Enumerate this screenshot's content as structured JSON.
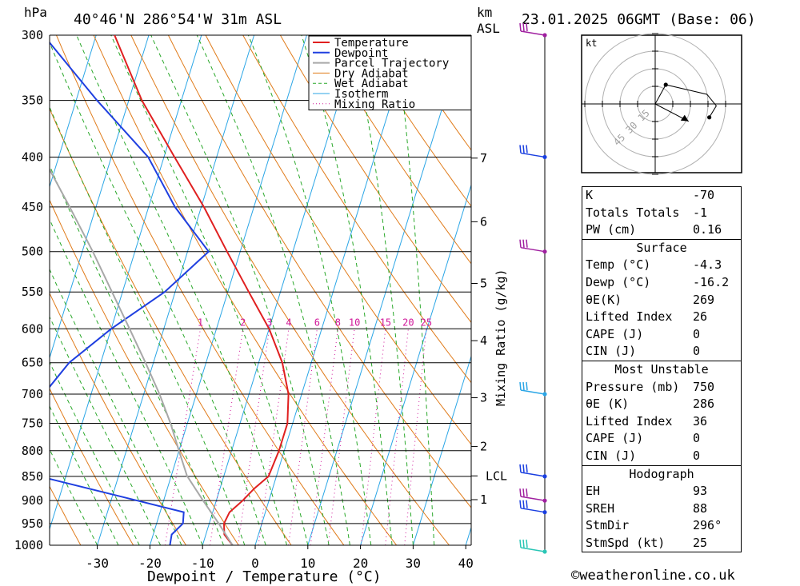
{
  "header": {
    "location": "40°46'N 286°54'W 31m ASL",
    "datetime": "23.01.2025 06GMT (Base: 06)",
    "hpa_label": "hPa",
    "km_label": "km",
    "asl_label": "ASL"
  },
  "chart_data": {
    "type": "line",
    "title": "",
    "xlabel": "Dewpoint / Temperature (°C)",
    "ylabel": "hPa",
    "right_label": "Mixing Ratio (g/kg)",
    "xlim": [
      -40,
      40
    ],
    "ylim": [
      1000,
      300
    ],
    "x_ticks": [
      "-30",
      "-20",
      "-10",
      "0",
      "10",
      "20",
      "30",
      "40"
    ],
    "pressure_levels": [
      "300",
      "350",
      "400",
      "450",
      "500",
      "550",
      "600",
      "650",
      "700",
      "750",
      "800",
      "850",
      "900",
      "950",
      "1000"
    ],
    "km_ticks": [
      {
        "label": "7",
        "p": 401
      },
      {
        "label": "6",
        "p": 466
      },
      {
        "label": "5",
        "p": 539
      },
      {
        "label": "4",
        "p": 617
      },
      {
        "label": "3",
        "p": 706
      },
      {
        "label": "2",
        "p": 792
      },
      {
        "label": "LCL",
        "p": 849
      },
      {
        "label": "1",
        "p": 898
      }
    ],
    "mixing_ratio_labels": [
      "1",
      "2",
      "3",
      "4",
      "6",
      "8",
      "10",
      "15",
      "20",
      "25"
    ],
    "legend": [
      "Temperature",
      "Dewpoint",
      "Parcel Trajectory",
      "Dry Adiabat",
      "Wet Adiabat",
      "Isotherm",
      "Mixing Ratio"
    ],
    "legend_placement": "top-right",
    "colors": {
      "temperature": "#e02020",
      "dewpoint": "#1f3fe0",
      "parcel": "#a8a8a8",
      "dry_adiabat": "#e07b1a",
      "wet_adiabat": "#2aa82a",
      "isotherm": "#2ba6e6",
      "mixing_ratio": "#d0189a"
    },
    "series": [
      {
        "name": "Temperature",
        "points": [
          [
            1000,
            -4.3
          ],
          [
            975,
            -6.5
          ],
          [
            950,
            -7.2
          ],
          [
            925,
            -6.8
          ],
          [
            900,
            -5.0
          ],
          [
            875,
            -3.5
          ],
          [
            850,
            -1.5
          ],
          [
            800,
            -1.0
          ],
          [
            750,
            -1.0
          ],
          [
            700,
            -2.5
          ],
          [
            650,
            -5.5
          ],
          [
            600,
            -10.0
          ],
          [
            550,
            -16.0
          ],
          [
            500,
            -22.5
          ],
          [
            450,
            -29.5
          ],
          [
            400,
            -38.0
          ],
          [
            350,
            -47.5
          ],
          [
            300,
            -56.5
          ]
        ]
      },
      {
        "name": "Dewpoint",
        "points": [
          [
            1000,
            -16.2
          ],
          [
            975,
            -16.5
          ],
          [
            950,
            -15.0
          ],
          [
            925,
            -15.5
          ],
          [
            900,
            -25.0
          ],
          [
            850,
            -45.0
          ],
          [
            800,
            -48.0
          ],
          [
            750,
            -50.0
          ],
          [
            700,
            -49.0
          ],
          [
            650,
            -46.0
          ],
          [
            600,
            -40.0
          ],
          [
            550,
            -32.0
          ],
          [
            500,
            -26.0
          ],
          [
            450,
            -35.0
          ],
          [
            400,
            -43.0
          ],
          [
            350,
            -56.0
          ],
          [
            300,
            -70.0
          ]
        ]
      },
      {
        "name": "Parcel Trajectory",
        "points": [
          [
            1000,
            -4.3
          ],
          [
            950,
            -8.2
          ],
          [
            900,
            -12.5
          ],
          [
            849,
            -17.0
          ],
          [
            800,
            -20.0
          ],
          [
            750,
            -23.2
          ],
          [
            700,
            -27.0
          ],
          [
            650,
            -31.5
          ],
          [
            600,
            -36.5
          ],
          [
            550,
            -42.0
          ],
          [
            500,
            -48.0
          ],
          [
            450,
            -55.0
          ],
          [
            400,
            -63.0
          ],
          [
            350,
            -71.0
          ]
        ]
      }
    ]
  },
  "wind_barbs": [
    {
      "p": 300,
      "color": "#a020a0",
      "label": "wind-barb-300"
    },
    {
      "p": 400,
      "color": "#1a3fe0",
      "label": "wind-barb-400"
    },
    {
      "p": 500,
      "color": "#a020a0",
      "label": "wind-barb-500"
    },
    {
      "p": 700,
      "color": "#2ba6e6",
      "label": "wind-barb-700"
    },
    {
      "p": 850,
      "color": "#1a3fe0",
      "label": "wind-barb-850"
    },
    {
      "p": 900,
      "color": "#a020a0",
      "label": "wind-barb-900"
    },
    {
      "p": 925,
      "color": "#1a3fe0",
      "label": "wind-barb-925"
    },
    {
      "p": 1000,
      "color": "#2bc6b6",
      "label": "wind-barb-1000"
    }
  ],
  "hodograph": {
    "unit": "kt",
    "ring_labels": [
      "15",
      "30",
      "45"
    ],
    "trace": [
      [
        0,
        0
      ],
      [
        9,
        -20
      ],
      [
        44,
        -10
      ],
      [
        52,
        2
      ],
      [
        46,
        14
      ]
    ],
    "storm_motion": [
      22,
      16
    ]
  },
  "indices": {
    "general": [
      {
        "label": "K",
        "value": "-70"
      },
      {
        "label": "Totals Totals",
        "value": "-1"
      },
      {
        "label": "PW (cm)",
        "value": "0.16"
      }
    ],
    "surface": {
      "title": "Surface",
      "rows": [
        {
          "label": "Temp (°C)",
          "value": "-4.3"
        },
        {
          "label": "Dewp (°C)",
          "value": "-16.2"
        },
        {
          "label": "θE(K)",
          "value": "269"
        },
        {
          "label": "Lifted Index",
          "value": "26"
        },
        {
          "label": "CAPE (J)",
          "value": "0"
        },
        {
          "label": "CIN (J)",
          "value": "0"
        }
      ]
    },
    "most_unstable": {
      "title": "Most Unstable",
      "rows": [
        {
          "label": "Pressure (mb)",
          "value": "750"
        },
        {
          "label": "θE (K)",
          "value": "286"
        },
        {
          "label": "Lifted Index",
          "value": "36"
        },
        {
          "label": "CAPE (J)",
          "value": "0"
        },
        {
          "label": "CIN (J)",
          "value": "0"
        }
      ]
    },
    "hodograph_table": {
      "title": "Hodograph",
      "rows": [
        {
          "label": "EH",
          "value": "93"
        },
        {
          "label": "SREH",
          "value": "88"
        },
        {
          "label": "StmDir",
          "value": "296°"
        },
        {
          "label": "StmSpd (kt)",
          "value": "25"
        }
      ]
    }
  },
  "footer": {
    "copyright": "©weatheronline.co.uk"
  }
}
